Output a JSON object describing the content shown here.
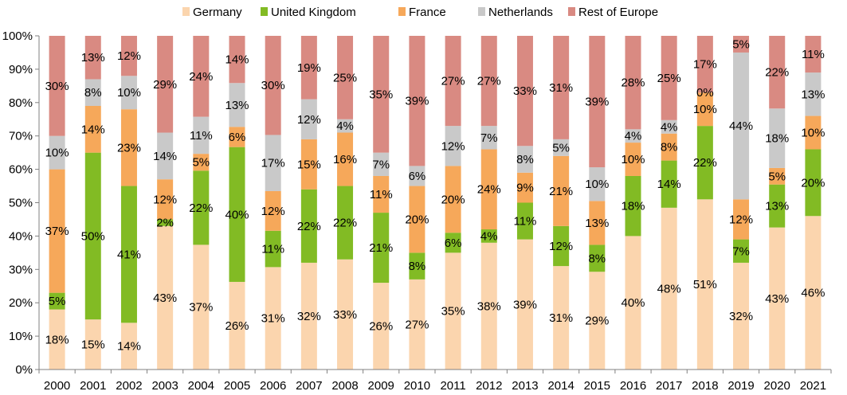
{
  "chart_data": {
    "type": "bar",
    "stacked": true,
    "percent": true,
    "legend_position": "top",
    "grid": false,
    "ylim": [
      0,
      100
    ],
    "yticks": [
      "0%",
      "10%",
      "20%",
      "30%",
      "40%",
      "50%",
      "60%",
      "70%",
      "80%",
      "90%",
      "100%"
    ],
    "categories": [
      "2000",
      "2001",
      "2002",
      "2003",
      "2004",
      "2005",
      "2006",
      "2007",
      "2008",
      "2009",
      "2010",
      "2011",
      "2012",
      "2013",
      "2014",
      "2015",
      "2016",
      "2017",
      "2018",
      "2019",
      "2020",
      "2021"
    ],
    "series": [
      {
        "name": "Germany",
        "color": "#FBD5AE",
        "values": [
          18,
          15,
          14,
          43,
          37,
          26,
          31,
          32,
          33,
          26,
          27,
          35,
          38,
          39,
          31,
          29,
          40,
          48,
          51,
          32,
          43,
          46
        ]
      },
      {
        "name": "United Kingdom",
        "color": "#82BB24",
        "values": [
          5,
          50,
          41,
          2,
          22,
          40,
          11,
          22,
          22,
          21,
          8,
          6,
          4,
          11,
          12,
          8,
          18,
          14,
          22,
          7,
          13,
          20
        ]
      },
      {
        "name": "France",
        "color": "#F6A85A",
        "values": [
          37,
          14,
          23,
          12,
          5,
          6,
          12,
          15,
          16,
          11,
          20,
          20,
          24,
          9,
          21,
          13,
          10,
          8,
          10,
          12,
          5,
          10
        ]
      },
      {
        "name": "Netherlands",
        "color": "#C9C9C9",
        "values": [
          10,
          8,
          10,
          14,
          11,
          13,
          17,
          12,
          4,
          7,
          6,
          12,
          7,
          8,
          5,
          10,
          4,
          4,
          0,
          44,
          18,
          13
        ]
      },
      {
        "name": "Rest of Europe",
        "color": "#D98A82",
        "values": [
          30,
          13,
          12,
          29,
          24,
          14,
          30,
          19,
          25,
          35,
          39,
          27,
          27,
          33,
          31,
          39,
          28,
          25,
          17,
          5,
          22,
          11
        ]
      }
    ]
  }
}
